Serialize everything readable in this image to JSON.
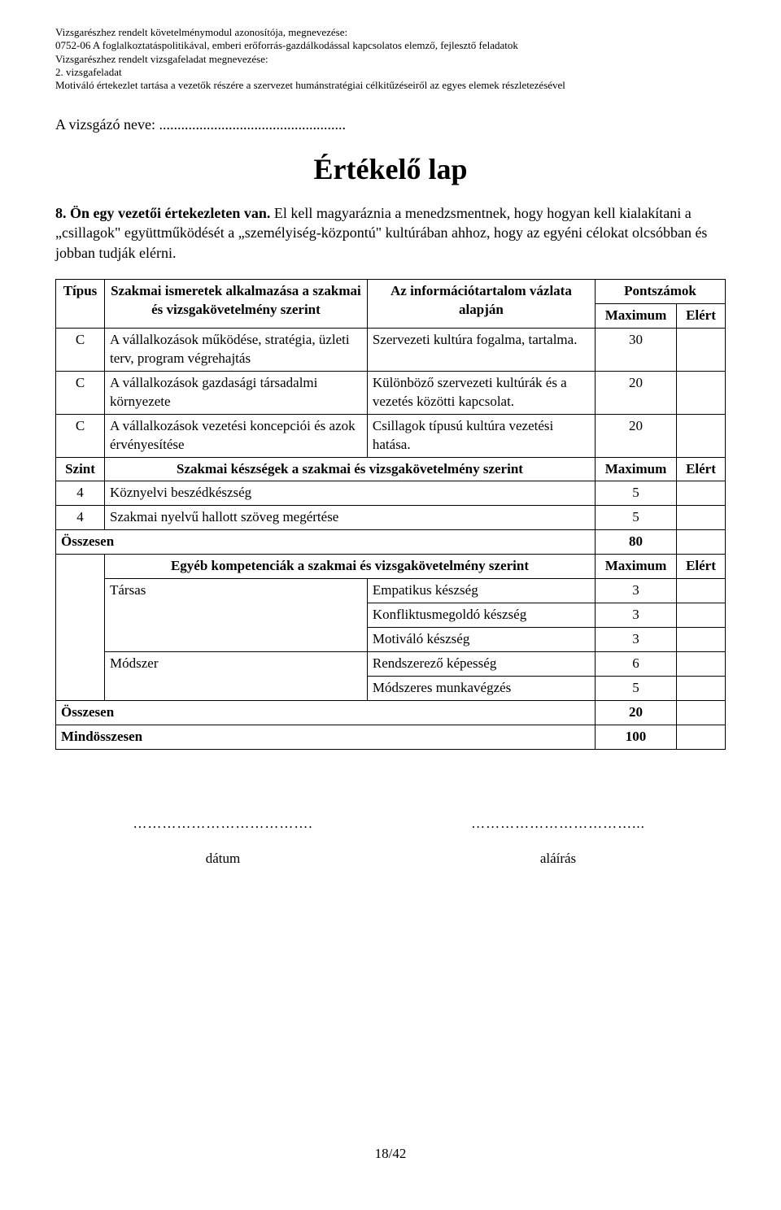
{
  "header": {
    "line1": "Vizsgarészhez rendelt követelménymodul azonosítója, megnevezése:",
    "line2": "0752-06 A foglalkoztatáspolitikával, emberi erőforrás-gazdálkodással kapcsolatos elemző, fejlesztő feladatok",
    "line3": "Vizsgarészhez rendelt vizsgafeladat megnevezése:",
    "line4": "2. vizsgafeladat",
    "line5": "Motiváló értekezlet tartása a vezetők részére a szervezet humánstratégiai célkitűzéseiről az egyes elemek részletezésével"
  },
  "name_label": "A vizsgázó neve:",
  "name_dots": "...................................................",
  "title": "Értékelő lap",
  "task": {
    "num": "8.",
    "lead": "Ön egy vezetői értekezleten van.",
    "body": "El kell magyaráznia a menedzsmentnek, hogy hogyan kell kialakítani a „csillagok\" együttműködését a „személyiség-központú\" kultúrában ahhoz, hogy az egyéni célokat olcsóbban és jobban tudják elérni."
  },
  "table": {
    "h_tipus": "Típus",
    "h_szakmai": "Szakmai ismeretek alkalmazása a szakmai és vizsgakövetelmény szerint",
    "h_info": "Az információtartalom vázlata alapján",
    "h_pontszamok": "Pontszámok",
    "h_maximum": "Maximum",
    "h_elert": "Elért",
    "rows_c": [
      {
        "tipus": "C",
        "szak": "A vállalkozások működése, stratégia, üzleti terv, program végrehajtás",
        "info": "Szervezeti kultúra fogalma, tartalma.",
        "max": "30"
      },
      {
        "tipus": "C",
        "szak": "A vállalkozások gazdasági társadalmi környezete",
        "info": "Különböző szervezeti kultúrák és a vezetés közötti kapcsolat.",
        "max": "20"
      },
      {
        "tipus": "C",
        "szak": "A vállalkozások vezetési koncepciói és azok érvényesítése",
        "info": "Csillagok típusú kultúra vezetési hatása.",
        "max": "20"
      }
    ],
    "h_szint": "Szint",
    "h_keszseg": "Szakmai készségek a szakmai és vizsgakövetelmény szerint",
    "rows_szint": [
      {
        "szint": "4",
        "label": "Köznyelvi beszédkészség",
        "max": "5"
      },
      {
        "szint": "4",
        "label": "Szakmai nyelvű hallott szöveg megértése",
        "max": "5"
      }
    ],
    "osszesen1_label": "Összesen",
    "osszesen1_val": "80",
    "h_egyeb": "Egyéb kompetenciák a szakmai és vizsgakövetelmény szerint",
    "egyeb": [
      {
        "cat": "Társas",
        "label": "Empatikus készség",
        "max": "3"
      },
      {
        "cat": "",
        "label": "Konfliktusmegoldó készség",
        "max": "3"
      },
      {
        "cat": "",
        "label": "Motiváló készség",
        "max": "3"
      },
      {
        "cat": "Módszer",
        "label": "Rendszerező képesség",
        "max": "6"
      },
      {
        "cat": "",
        "label": "Módszeres munkavégzés",
        "max": "5"
      }
    ],
    "osszesen2_label": "Összesen",
    "osszesen2_val": "20",
    "mindossz_label": "Mindösszesen",
    "mindossz_val": "100"
  },
  "sig": {
    "date_dots": "……………………………….",
    "sign_dots": "……………………………...",
    "date_label": "dátum",
    "sign_label": "aláírás"
  },
  "page_number": "18/42"
}
